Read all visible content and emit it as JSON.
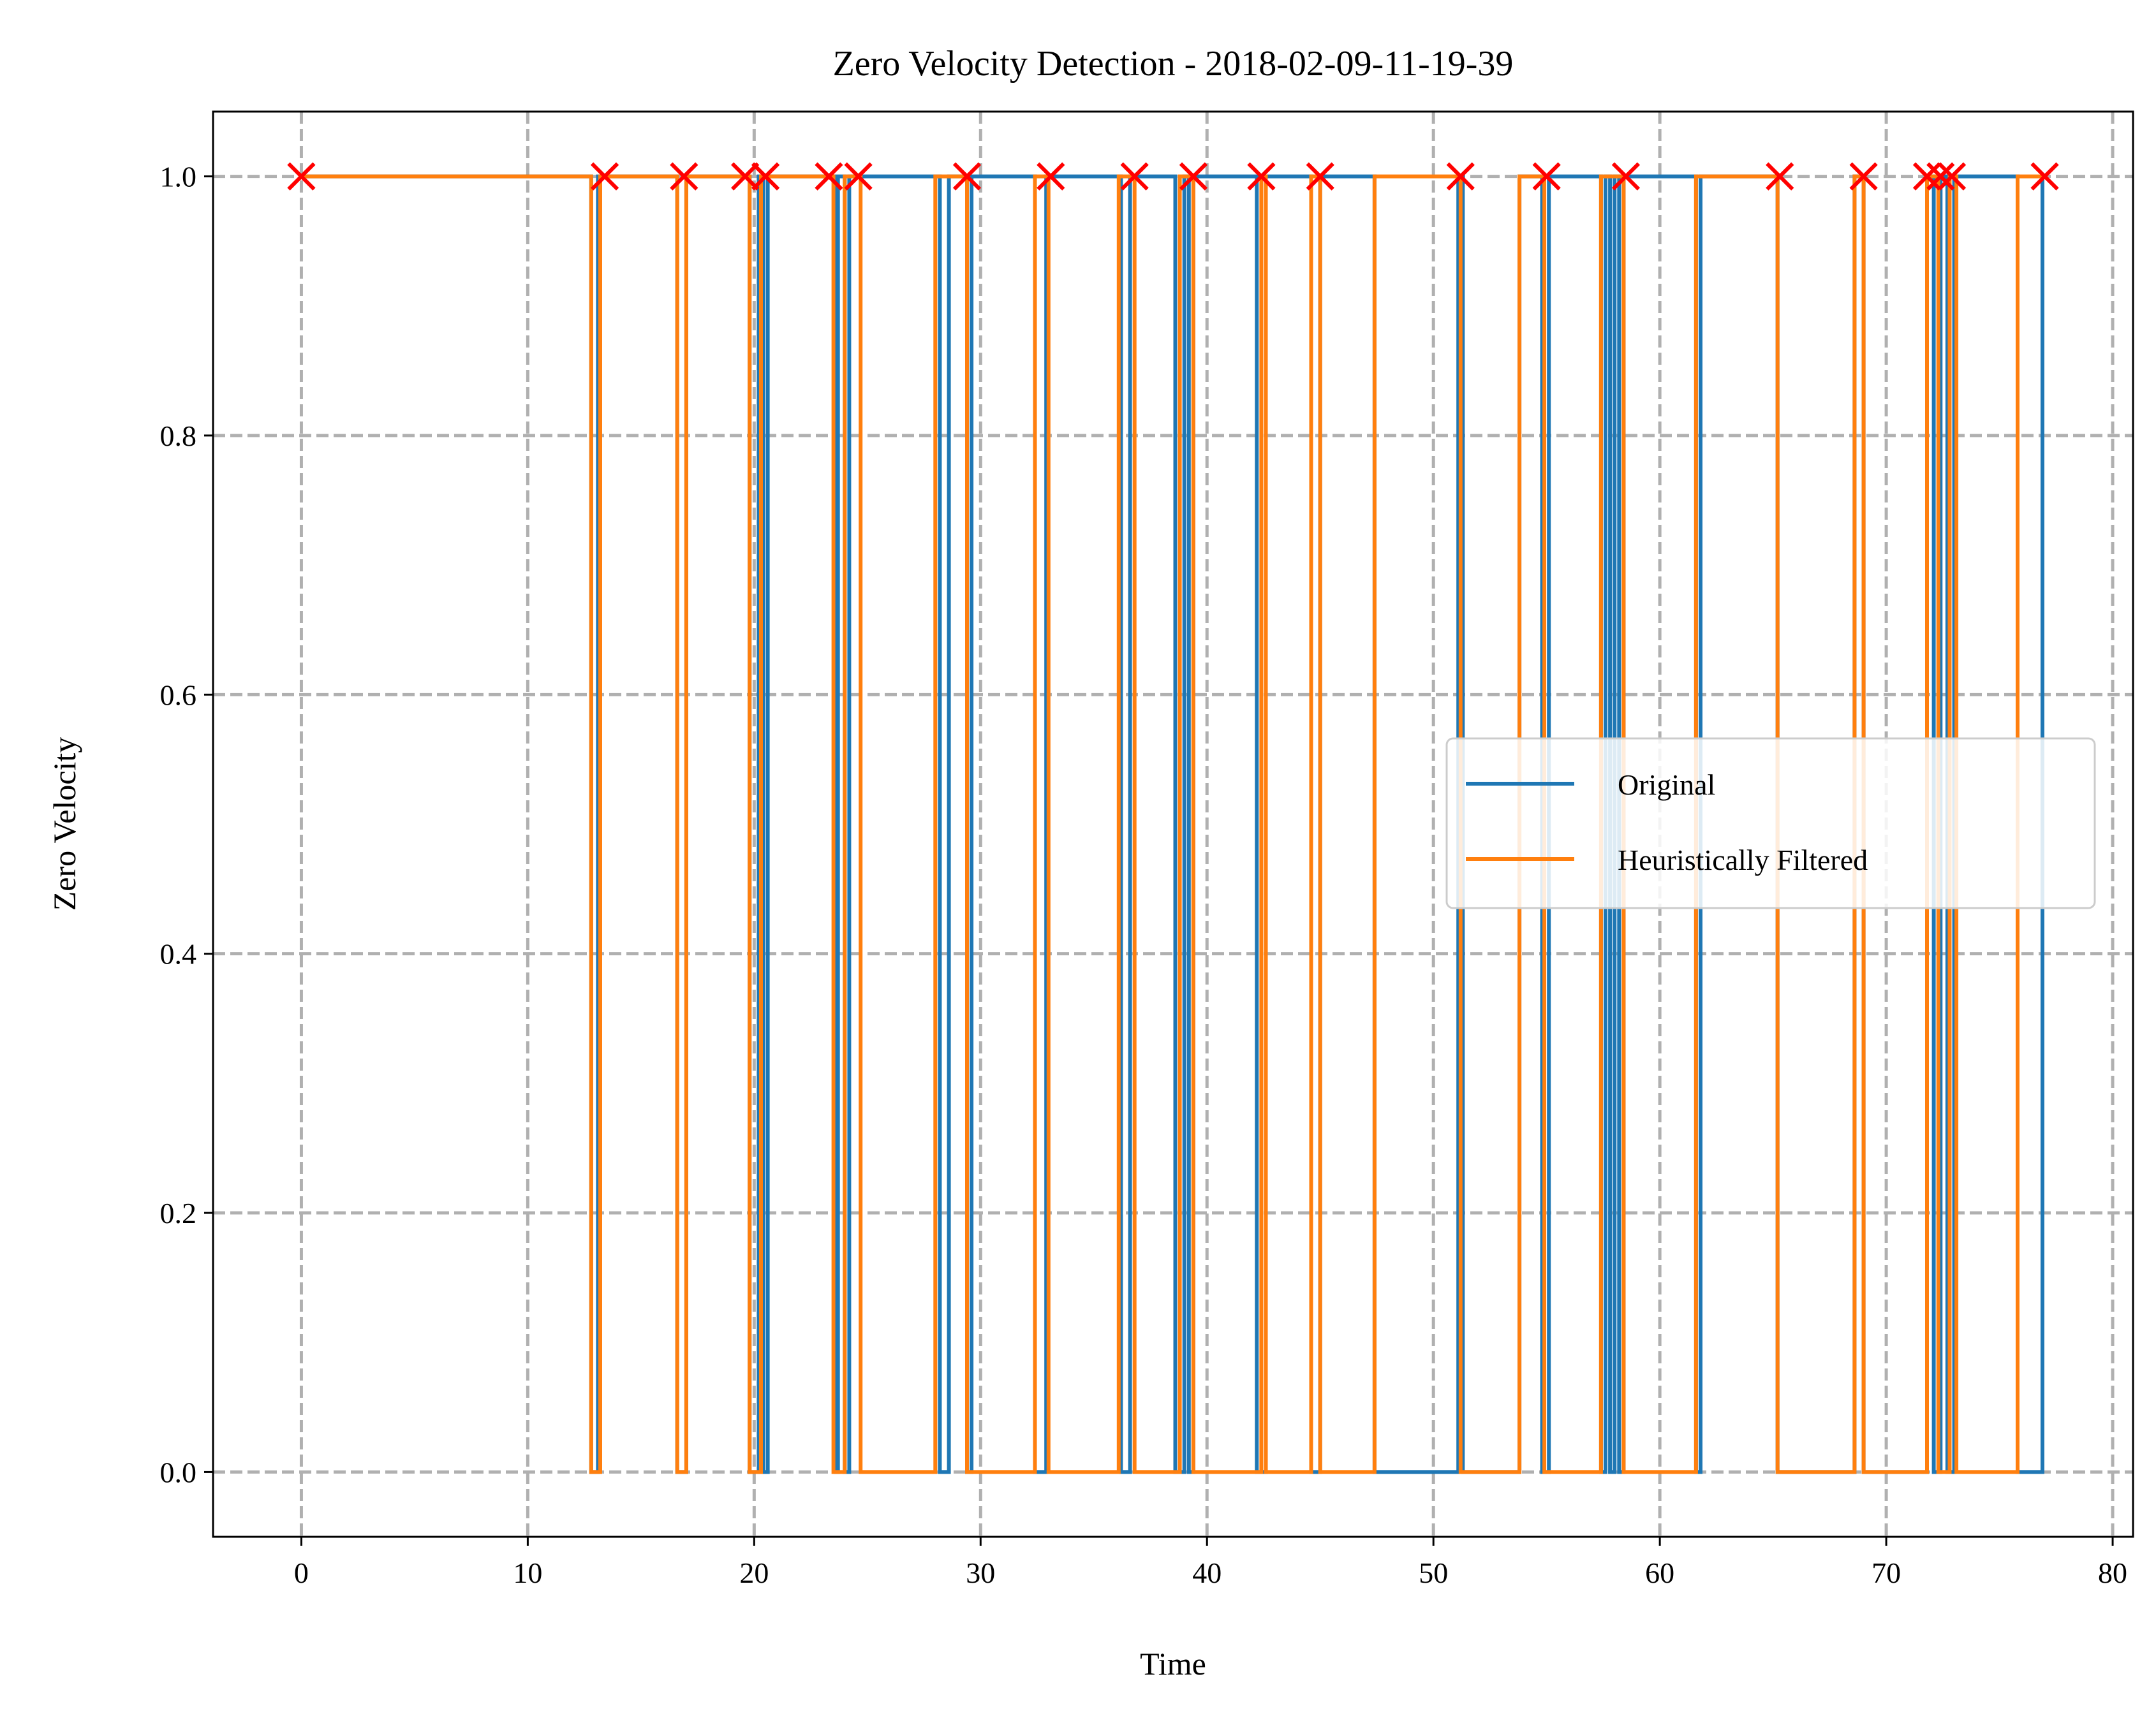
{
  "chart_data": {
    "type": "line",
    "title": "Zero Velocity Detection - 2018-02-09-11-19-39",
    "xlabel": "Time",
    "ylabel": "Zero Velocity",
    "xlim": [
      -3.9,
      80.9
    ],
    "ylim": [
      -0.05,
      1.05
    ],
    "x_ticks": [
      0,
      10,
      20,
      30,
      40,
      50,
      60,
      70,
      80
    ],
    "x_tick_labels": [
      "0",
      "10",
      "20",
      "30",
      "40",
      "50",
      "60",
      "70",
      "80"
    ],
    "y_ticks": [
      0.0,
      0.2,
      0.4,
      0.6,
      0.8,
      1.0
    ],
    "y_tick_labels": [
      "0.0",
      "0.2",
      "0.4",
      "0.6",
      "0.8",
      "1.0"
    ],
    "grid": true,
    "grid_style": "dashed",
    "legend_position": "center-right",
    "colors": {
      "original": "#1f77b4",
      "filtered": "#ff7f0e",
      "markers": "#ff0000",
      "grid": "#b0b0b0"
    },
    "series": [
      {
        "name": "Original",
        "step": "post",
        "x": [
          0,
          12.8,
          13.1,
          16.6,
          17.0,
          19.8,
          20.2,
          20.4,
          20.6,
          23.6,
          23.7,
          24.0,
          24.2,
          28.2,
          28.6,
          29.4,
          29.6,
          32.4,
          32.9,
          36.2,
          36.6,
          38.6,
          39.0,
          39.2,
          39.4,
          42.2,
          42.6,
          44.6,
          45.0,
          47.4,
          51.1,
          51.3,
          53.8,
          54.8,
          55.1,
          57.4,
          57.6,
          57.8,
          58.0,
          58.2,
          58.4,
          61.6,
          61.8,
          65.2,
          68.6,
          69.0,
          71.8,
          72.1,
          72.4,
          72.7,
          73.0,
          75.8,
          76.9
        ],
        "y": [
          1,
          0,
          1,
          0,
          1,
          0,
          1,
          0,
          1,
          0,
          1,
          0,
          1,
          0,
          1,
          0,
          1,
          0,
          1,
          0,
          1,
          0,
          1,
          0,
          1,
          0,
          1,
          0,
          1,
          0,
          1,
          0,
          1,
          0,
          1,
          0,
          1,
          0,
          1,
          0,
          1,
          0,
          1,
          0,
          1,
          0,
          1,
          0,
          1,
          0,
          1,
          0,
          1
        ]
      },
      {
        "name": "Heuristically Filtered",
        "step": "post",
        "x": [
          0,
          12.8,
          13.2,
          16.6,
          17.0,
          19.8,
          20.3,
          23.5,
          24.0,
          24.7,
          28.0,
          29.4,
          32.4,
          33.0,
          36.1,
          36.8,
          38.8,
          39.4,
          42.4,
          42.6,
          44.6,
          45.0,
          47.4,
          51.2,
          53.8,
          54.9,
          57.4,
          58.4,
          61.6,
          65.2,
          68.6,
          69.0,
          71.8,
          72.3,
          72.8,
          73.1,
          75.8,
          76.9
        ],
        "y": [
          1,
          0,
          1,
          0,
          1,
          0,
          1,
          0,
          1,
          0,
          1,
          0,
          1,
          0,
          1,
          0,
          1,
          0,
          1,
          0,
          1,
          0,
          1,
          0,
          1,
          0,
          1,
          0,
          1,
          0,
          1,
          0,
          1,
          0,
          1,
          0,
          1,
          1
        ]
      }
    ],
    "markers": {
      "shape": "x",
      "x": [
        0,
        13.4,
        16.9,
        19.6,
        20.5,
        23.3,
        24.6,
        29.4,
        33.1,
        36.8,
        39.4,
        42.4,
        45.0,
        51.2,
        55.0,
        58.5,
        65.3,
        69.0,
        71.8,
        72.4,
        72.9,
        77.0
      ],
      "y": [
        1,
        1,
        1,
        1,
        1,
        1,
        1,
        1,
        1,
        1,
        1,
        1,
        1,
        1,
        1,
        1,
        1,
        1,
        1,
        1,
        1,
        1
      ]
    }
  }
}
